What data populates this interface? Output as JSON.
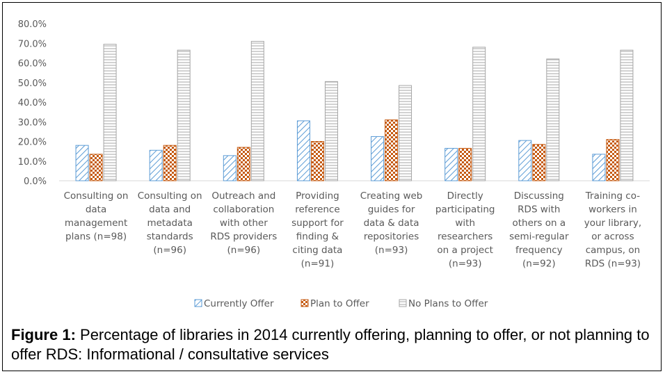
{
  "chart_data": {
    "type": "bar",
    "categories": [
      [
        "Consulting on",
        "data",
        "management",
        "plans (n=98)"
      ],
      [
        "Consulting on",
        "data and",
        "metadata",
        "standards",
        "(n=96)"
      ],
      [
        "Outreach and",
        "collaboration",
        "with other",
        "RDS providers",
        "(n=96)"
      ],
      [
        "Providing",
        "reference",
        "support for",
        "finding &",
        "citing data",
        "(n=91)"
      ],
      [
        "Creating web",
        "guides for",
        "data & data",
        "repositories",
        "(n=93)"
      ],
      [
        "Directly",
        "participating",
        "with",
        "researchers",
        "on a project",
        "(n=93)"
      ],
      [
        "Discussing",
        "RDS with",
        "others on a",
        "semi-regular",
        "frequency",
        "(n=92)"
      ],
      [
        "Training co-",
        "workers in",
        "your library,",
        "or across",
        "campus, on",
        "RDS (n=93)"
      ]
    ],
    "series": [
      {
        "name": "Currently Offer",
        "values": [
          18.0,
          15.5,
          12.8,
          30.5,
          22.5,
          16.5,
          20.5,
          13.5
        ],
        "color": "#5b9bd5",
        "pattern": "diagonal-stripes"
      },
      {
        "name": "Plan to Offer",
        "values": [
          13.5,
          18.0,
          17.0,
          20.0,
          31.0,
          16.5,
          18.5,
          21.0
        ],
        "color": "#c55a11",
        "pattern": "checker"
      },
      {
        "name": "No Plans to Offer",
        "values": [
          69.5,
          66.5,
          71.0,
          50.5,
          48.5,
          68.0,
          62.0,
          66.5
        ],
        "color": "#a5a5a5",
        "pattern": "horizontal-stripes"
      }
    ],
    "yticks": [
      "0.0%",
      "10.0%",
      "20.0%",
      "30.0%",
      "40.0%",
      "50.0%",
      "60.0%",
      "70.0%",
      "80.0%"
    ],
    "ylim": [
      0,
      80
    ],
    "title": "",
    "xlabel": "",
    "ylabel": "",
    "grid": false,
    "legend_position": "bottom"
  },
  "caption": {
    "label": "Figure 1:",
    "text": " Percentage of libraries in 2014 currently offering, planning to offer, or not planning to offer RDS: Informational / consultative services"
  }
}
